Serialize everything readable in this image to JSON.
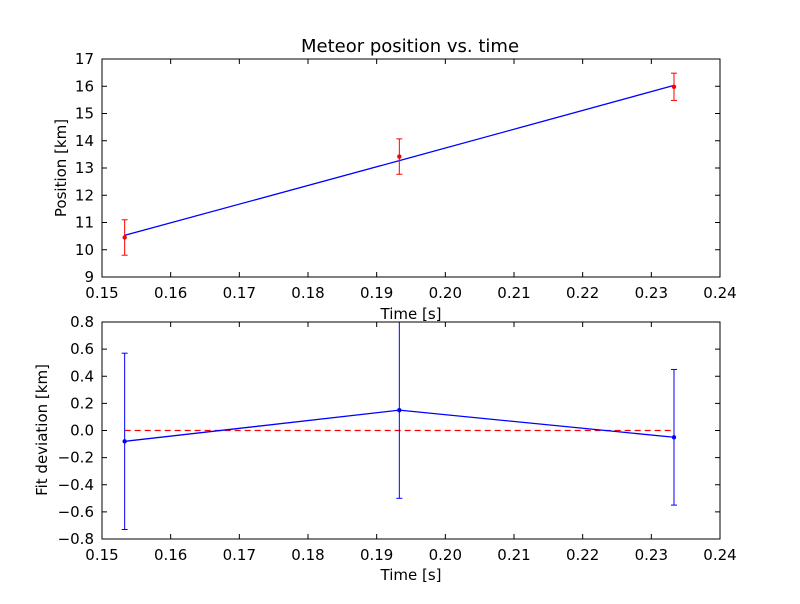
{
  "chart_data": [
    {
      "type": "scatter",
      "title": "Meteor position vs. time",
      "xlabel": "Time [s]",
      "ylabel": "Position [km]",
      "xlim": [
        0.15,
        0.24
      ],
      "ylim": [
        9,
        17
      ],
      "xticks": [
        "0.15",
        "0.16",
        "0.17",
        "0.18",
        "0.19",
        "0.20",
        "0.21",
        "0.22",
        "0.23",
        "0.24"
      ],
      "yticks": [
        "9",
        "10",
        "11",
        "12",
        "13",
        "14",
        "15",
        "16",
        "17"
      ],
      "points": {
        "x": [
          0.1533,
          0.1933,
          0.2333
        ],
        "y": [
          10.45,
          13.42,
          15.98
        ],
        "err": [
          0.65,
          0.65,
          0.5
        ],
        "color": "#ff0000"
      },
      "fit_line": {
        "x": [
          0.1533,
          0.1933,
          0.2333
        ],
        "y": [
          10.53,
          13.27,
          16.03
        ],
        "color": "#0000ff"
      },
      "grid": false
    },
    {
      "type": "line",
      "title": "",
      "xlabel": "Time [s]",
      "ylabel": "Fit deviation [km]",
      "xlim": [
        0.15,
        0.24
      ],
      "ylim": [
        -0.8,
        0.8
      ],
      "xticks": [
        "0.15",
        "0.16",
        "0.17",
        "0.18",
        "0.19",
        "0.20",
        "0.21",
        "0.22",
        "0.23",
        "0.24"
      ],
      "yticks": [
        "−0.8",
        "−0.6",
        "−0.4",
        "−0.2",
        "0.0",
        "0.2",
        "0.4",
        "0.6",
        "0.8"
      ],
      "series": {
        "x": [
          0.1533,
          0.1933,
          0.2333
        ],
        "y": [
          -0.08,
          0.15,
          -0.05
        ],
        "err": [
          0.65,
          0.65,
          0.5
        ],
        "color": "#0000ff"
      },
      "reference_line": {
        "x": [
          0.1533,
          0.2333
        ],
        "y": 0.0,
        "style": "dashed",
        "color": "#ff0000"
      },
      "grid": false
    }
  ]
}
